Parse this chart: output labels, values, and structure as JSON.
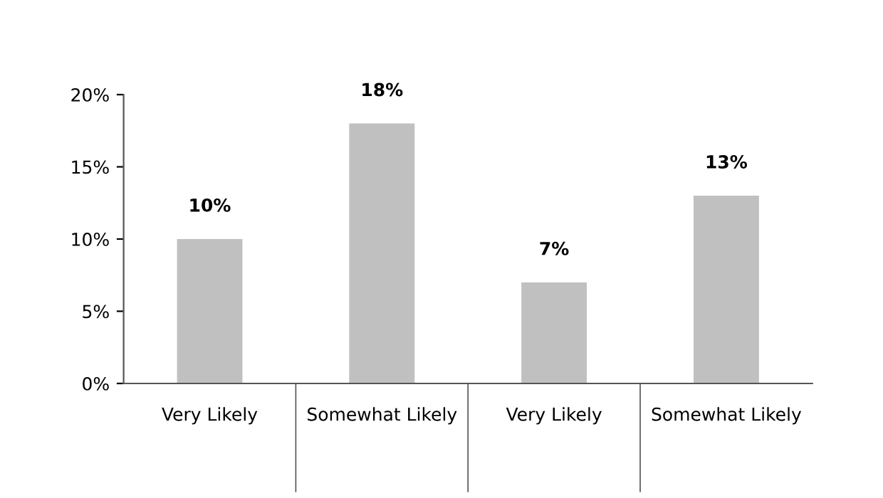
{
  "chart_data": {
    "type": "bar",
    "categories": [
      "Very Likely",
      "Somewhat Likely",
      "Very Likely",
      "Somewhat Likely"
    ],
    "values": [
      10,
      18,
      7,
      13
    ],
    "color": "#c0c0c0",
    "ylim": [
      0,
      20
    ],
    "yticks": [
      {
        "value": 0,
        "label": "0%"
      },
      {
        "value": 5,
        "label": "5%"
      },
      {
        "value": 10,
        "label": "10%"
      },
      {
        "value": 15,
        "label": "15%"
      },
      {
        "value": 20,
        "label": "20%"
      }
    ],
    "value_labels": [
      "10%",
      "18%",
      "7%",
      "13%"
    ],
    "grid": false
  }
}
